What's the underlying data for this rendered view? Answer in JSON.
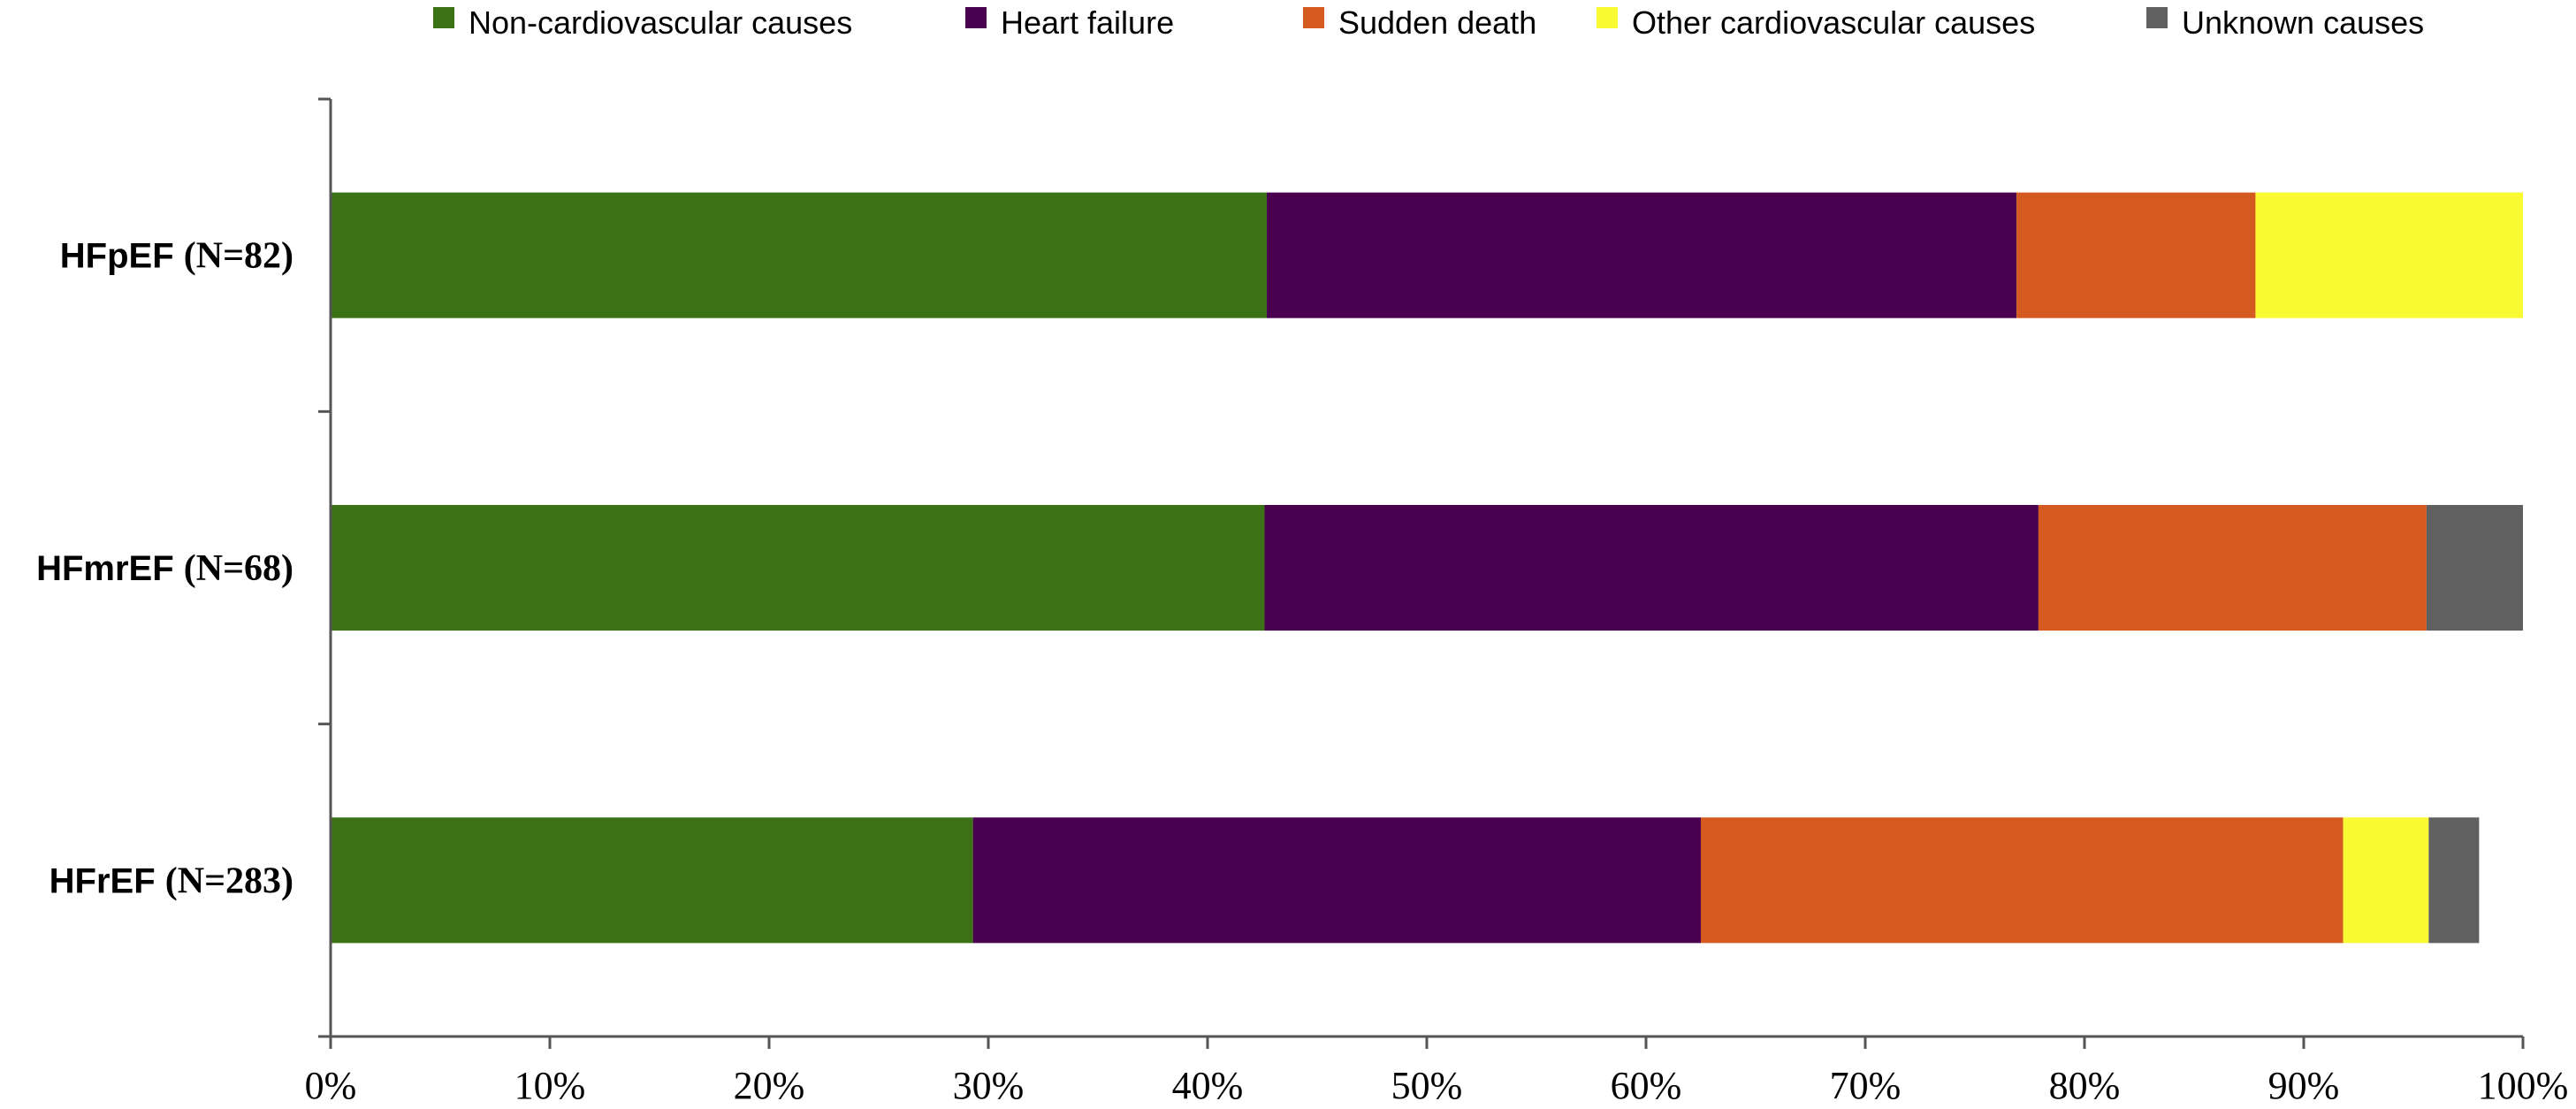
{
  "chart_data": {
    "type": "bar",
    "orientation": "horizontal",
    "stacked": true,
    "percent_stacked": true,
    "categories": [
      {
        "name": "HFpEF",
        "n_label": "(N=82)"
      },
      {
        "name": "HFmrEF",
        "n_label": "(N=68)"
      },
      {
        "name": "HFrEF",
        "n_label": "(N=283)"
      }
    ],
    "series": [
      {
        "name": "Non-cardiovascular causes",
        "color": "#3a7215",
        "values": [
          42.7,
          42.6,
          29.3
        ]
      },
      {
        "name": "Heart failure",
        "color": "#48004f",
        "values": [
          34.2,
          35.3,
          33.2
        ]
      },
      {
        "name": "Sudden death",
        "color": "#d55a1f",
        "values": [
          10.9,
          17.7,
          29.3
        ]
      },
      {
        "name": "Other cardiovascular causes",
        "color": "#fafa32",
        "values": [
          12.2,
          0,
          3.9
        ]
      },
      {
        "name": "Unknown causes",
        "color": "#606060",
        "values": [
          0,
          4.4,
          2.3
        ]
      }
    ],
    "xlim": [
      0,
      100
    ],
    "x_ticks": [
      "0%",
      "10%",
      "20%",
      "30%",
      "40%",
      "50%",
      "60%",
      "70%",
      "80%",
      "90%",
      "100%"
    ],
    "xlabel": "",
    "ylabel": "",
    "title": "",
    "grid": false,
    "legend_position": "top"
  }
}
